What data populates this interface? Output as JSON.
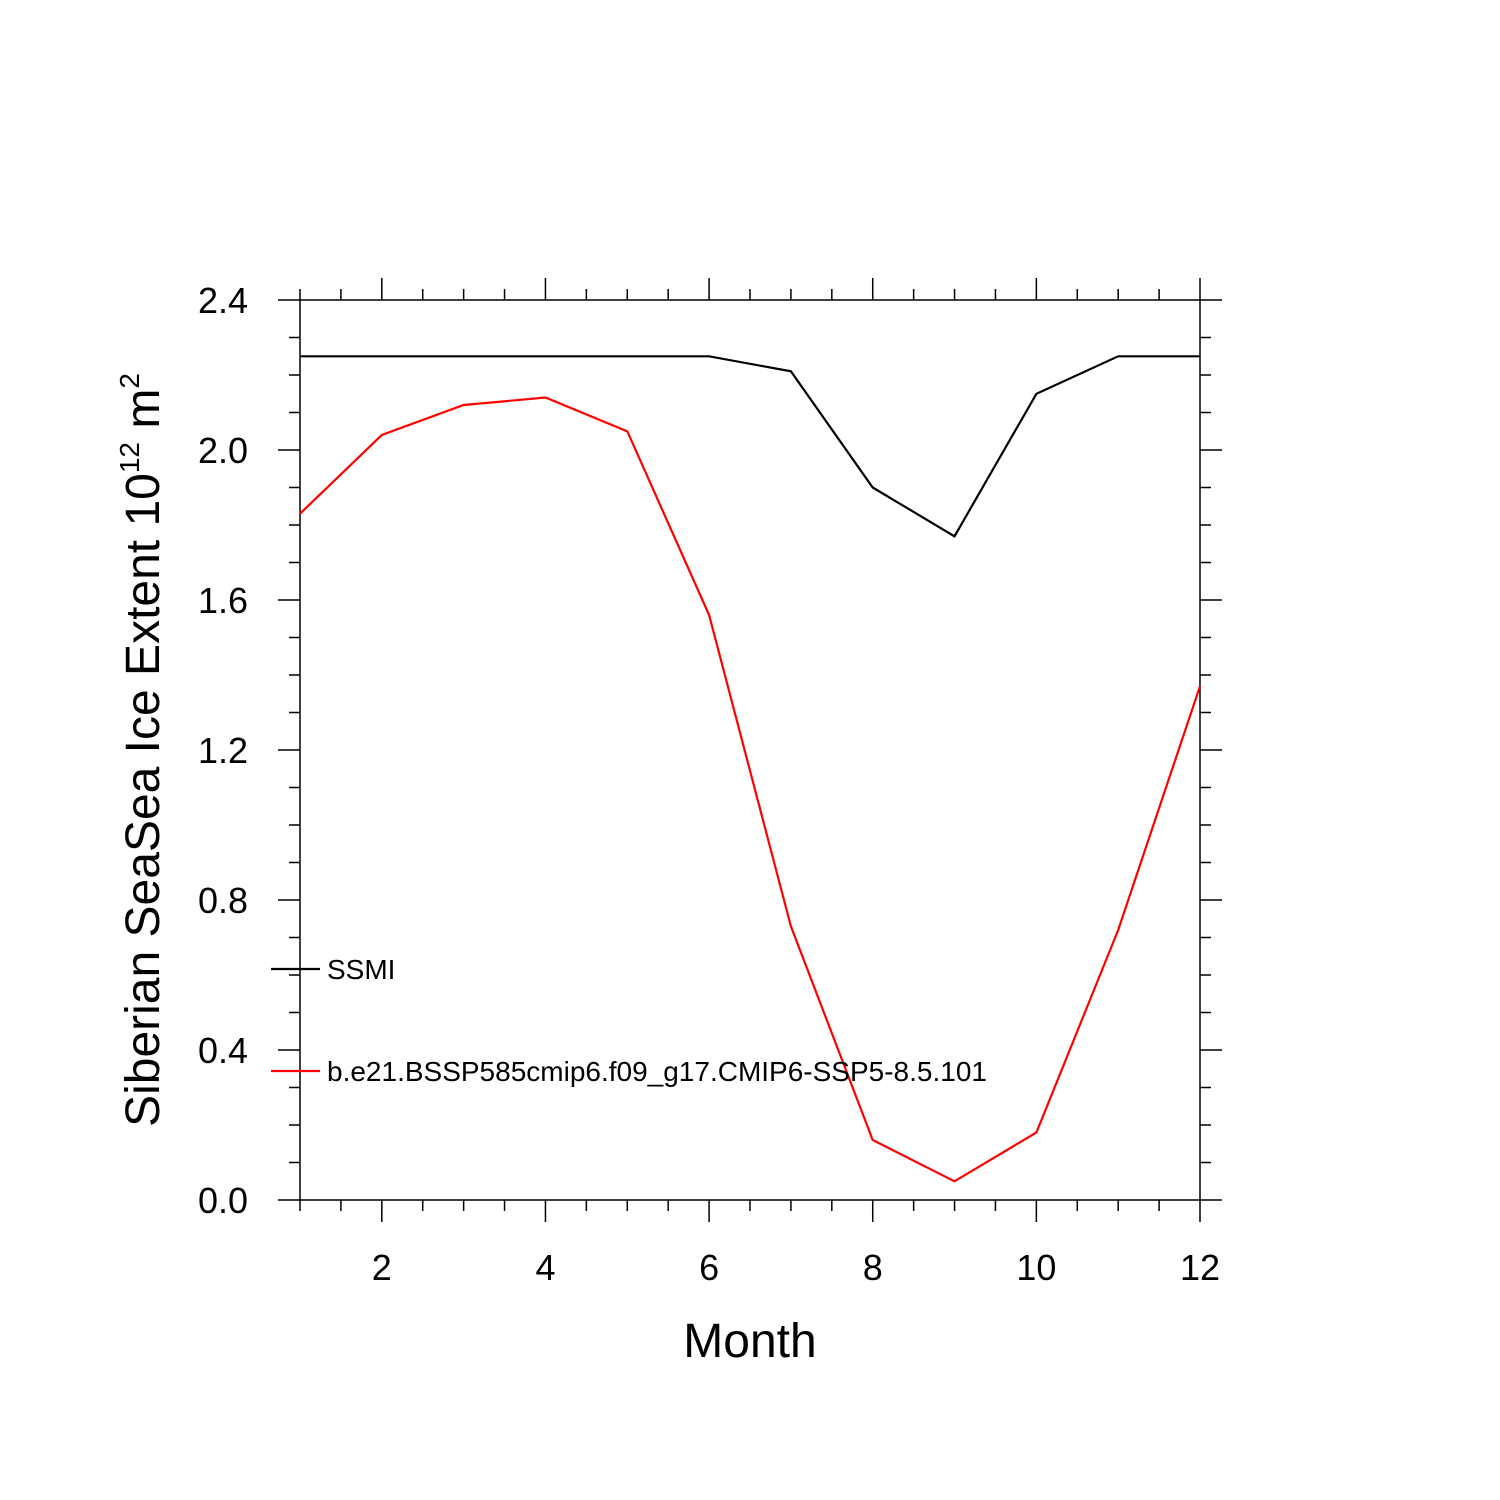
{
  "chart_data": {
    "type": "line",
    "title": "",
    "xlabel": "Month",
    "ylabel_main": "Siberian SeaSea Ice Extent 10",
    "ylabel_exp": "12",
    "ylabel_unit": " m",
    "ylabel_unit_exp": "2",
    "xlim": [
      1,
      12
    ],
    "ylim": [
      0,
      2.4
    ],
    "x_ticks": [
      2,
      4,
      6,
      8,
      10,
      12
    ],
    "x_tick_labels": [
      "2",
      "4",
      "6",
      "8",
      "10",
      "12"
    ],
    "y_ticks": [
      0,
      0.4,
      0.8,
      1.2,
      1.6,
      2.0,
      2.4
    ],
    "y_tick_labels": [
      "0.0",
      "0.4",
      "0.8",
      "1.2",
      "1.6",
      "2.0",
      "2.4"
    ],
    "grid": false,
    "legend_placement": "left-inside-lower",
    "x": [
      1,
      2,
      3,
      4,
      5,
      6,
      7,
      8,
      9,
      10,
      11,
      12
    ],
    "series": [
      {
        "name": "SSMI",
        "color": "#000000",
        "values": [
          2.25,
          2.25,
          2.25,
          2.25,
          2.25,
          2.25,
          2.21,
          1.9,
          1.77,
          2.15,
          2.25,
          2.25
        ]
      },
      {
        "name": "b.e21.BSSP585cmip6.f09_g17.CMIP6-SSP5-8.5.101",
        "color": "#ff0000",
        "values": [
          1.83,
          2.04,
          2.12,
          2.14,
          2.05,
          1.56,
          0.73,
          0.16,
          0.05,
          0.18,
          0.72,
          1.37
        ]
      }
    ]
  }
}
